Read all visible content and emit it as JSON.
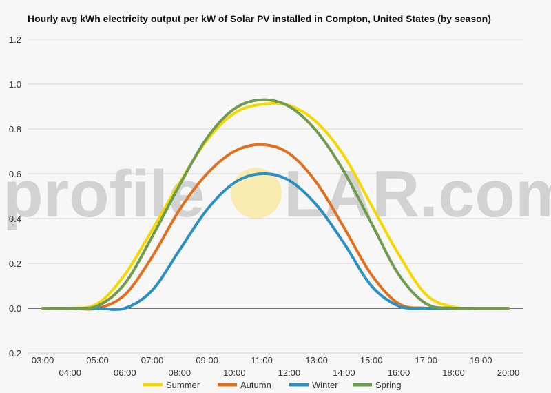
{
  "title": "Hourly avg kWh electricity output per kW of Solar PV installed in Compton, United States (by season)",
  "watermark": {
    "left": "profile",
    "right": "LAR.com"
  },
  "chart_data": {
    "type": "line",
    "title": "Hourly avg kWh electricity output per kW of Solar PV installed in Compton, United States (by season)",
    "xlabel": "",
    "ylabel": "",
    "x": [
      "03:00",
      "04:00",
      "05:00",
      "06:00",
      "07:00",
      "08:00",
      "09:00",
      "10:00",
      "11:00",
      "12:00",
      "13:00",
      "14:00",
      "15:00",
      "16:00",
      "17:00",
      "18:00",
      "19:00",
      "20:00"
    ],
    "ylim": [
      -0.2,
      1.2
    ],
    "yticks": [
      "-0.2",
      "0.0",
      "0.2",
      "0.4",
      "0.6",
      "0.8",
      "1.0",
      "1.2"
    ],
    "grid": true,
    "legend": "bottom",
    "series": [
      {
        "name": "Summer",
        "color": "#f5d800",
        "values": [
          0.0,
          0.0,
          0.02,
          0.15,
          0.35,
          0.56,
          0.75,
          0.87,
          0.91,
          0.905,
          0.83,
          0.68,
          0.46,
          0.24,
          0.06,
          0.005,
          0.0,
          0.0
        ]
      },
      {
        "name": "Autumn",
        "color": "#e0701e",
        "values": [
          0.0,
          0.0,
          0.0,
          0.06,
          0.23,
          0.44,
          0.6,
          0.7,
          0.73,
          0.69,
          0.56,
          0.36,
          0.15,
          0.02,
          0.0,
          0.0,
          0.0,
          0.0
        ]
      },
      {
        "name": "Winter",
        "color": "#2b8fc0",
        "values": [
          0.0,
          0.0,
          0.0,
          0.0,
          0.08,
          0.26,
          0.44,
          0.56,
          0.6,
          0.57,
          0.46,
          0.29,
          0.1,
          0.01,
          0.0,
          0.0,
          0.0,
          0.0
        ]
      },
      {
        "name": "Spring",
        "color": "#6e9b4e",
        "values": [
          0.0,
          0.0,
          0.01,
          0.11,
          0.32,
          0.55,
          0.76,
          0.89,
          0.93,
          0.9,
          0.79,
          0.61,
          0.38,
          0.15,
          0.02,
          0.0,
          0.0,
          0.0
        ]
      }
    ]
  }
}
